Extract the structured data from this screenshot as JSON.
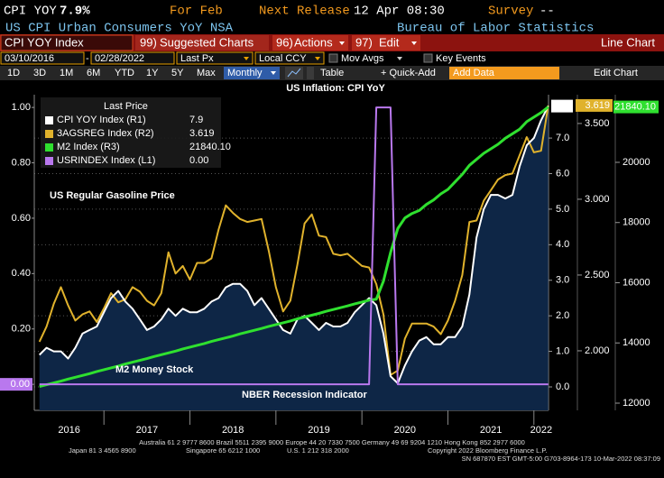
{
  "header": {
    "ticker": "CPI YOY",
    "value": "7.9%",
    "period": "For Feb",
    "next_release_label": "Next Release",
    "next_release": "12 Apr 08:30",
    "survey_label": "Survey",
    "survey": "--",
    "description": "US CPI Urban Consumers YoY NSA",
    "source": "Bureau of Labor Statistics"
  },
  "toolbar": {
    "security": "CPI YOY Index",
    "menus": [
      {
        "number": "99)",
        "label": "Suggested Charts"
      },
      {
        "number": "96)",
        "label": "Actions"
      },
      {
        "number": "97)",
        "label": "Edit"
      }
    ],
    "chart_type": "Line Chart",
    "start_date": "03/10/2016",
    "separator": "-",
    "end_date": "02/28/2022",
    "field": "Last Px",
    "currency": "Local CCY",
    "options": [
      "Mov Avgs",
      "Key Events"
    ],
    "periods": [
      "1D",
      "3D",
      "1M",
      "6M",
      "YTD",
      "1Y",
      "5Y",
      "Max"
    ],
    "frequency": "Monthly",
    "table": "Table",
    "quick_add": "+ Quick-Add",
    "add_data": "Add Data",
    "edit_chart": "Edit Chart"
  },
  "chart_data": {
    "type": "line",
    "title": "US Inflation: CPI YoY",
    "annotations": [
      "US Regular Gasoline Price",
      "M2 Money Stock",
      "NBER Recession Indicator"
    ],
    "legend": "upper left",
    "legend_title": "Last Price",
    "grid": true,
    "x": [
      2016.25,
      2016.333,
      2016.417,
      2016.5,
      2016.583,
      2016.667,
      2016.75,
      2016.833,
      2016.917,
      2017,
      2017.083,
      2017.167,
      2017.25,
      2017.333,
      2017.417,
      2017.5,
      2017.583,
      2017.667,
      2017.75,
      2017.833,
      2017.917,
      2018,
      2018.083,
      2018.167,
      2018.25,
      2018.333,
      2018.417,
      2018.5,
      2018.583,
      2018.667,
      2018.75,
      2018.833,
      2018.917,
      2019,
      2019.083,
      2019.167,
      2019.25,
      2019.333,
      2019.417,
      2019.5,
      2019.583,
      2019.667,
      2019.75,
      2019.833,
      2019.917,
      2020,
      2020.083,
      2020.167,
      2020.25,
      2020.333,
      2020.417,
      2020.5,
      2020.583,
      2020.667,
      2020.75,
      2020.833,
      2020.917,
      2021,
      2021.083,
      2021.167,
      2021.25,
      2021.333,
      2021.417,
      2021.5,
      2021.583,
      2021.667,
      2021.75,
      2021.833,
      2021.917,
      2022,
      2022.083,
      2022.167
    ],
    "xlim": [
      2016.19,
      2022.17
    ],
    "xticks": [
      2016,
      2017,
      2018,
      2019,
      2020,
      2021,
      2022
    ],
    "ylim": [
      -0.094,
      1.046
    ],
    "yticks": [
      {
        "value": 0,
        "label": "0.00"
      },
      {
        "value": 0.2,
        "label": "0.20"
      },
      {
        "value": 0.4,
        "label": "0.40"
      },
      {
        "value": 0.6,
        "label": "0.60"
      },
      {
        "value": 0.8,
        "label": "0.80"
      },
      {
        "value": 1,
        "label": "1.00"
      }
    ],
    "y2lim": [
      -0.66,
      8.22
    ],
    "y2ticks": [
      {
        "value": 0,
        "label": "0.0"
      },
      {
        "value": 1,
        "label": "1.0"
      },
      {
        "value": 2,
        "label": "2.0"
      },
      {
        "value": 3,
        "label": "3.0"
      },
      {
        "value": 4,
        "label": "4.0"
      },
      {
        "value": 5,
        "label": "5.0"
      },
      {
        "value": 6,
        "label": "6.0"
      },
      {
        "value": 7,
        "label": "7.0"
      }
    ],
    "y3lim": [
      1.607,
      3.69
    ],
    "y3ticks": [
      {
        "value": 2,
        "label": "2.000"
      },
      {
        "value": 2.5,
        "label": "2.500"
      },
      {
        "value": 3,
        "label": "3.000"
      },
      {
        "value": 3.5,
        "label": "3.500"
      }
    ],
    "y4lim": [
      11760,
      22247
    ],
    "y4ticks": [
      12000,
      14000,
      16000,
      18000,
      20000
    ],
    "series": [
      {
        "name": "CPI YOY Index (R1)",
        "color": "#ffffff",
        "axis": "y2",
        "area": "#0e2646",
        "last_label": "7.9",
        "values": [
          0.9,
          1.1,
          1.0,
          1.0,
          0.8,
          1.1,
          1.5,
          1.6,
          1.7,
          2.1,
          2.5,
          2.7,
          2.4,
          2.2,
          1.9,
          1.6,
          1.7,
          1.9,
          2.2,
          2.0,
          2.2,
          2.1,
          2.1,
          2.2,
          2.4,
          2.5,
          2.8,
          2.9,
          2.9,
          2.7,
          2.3,
          2.5,
          2.2,
          1.9,
          1.6,
          1.5,
          1.9,
          2.0,
          1.8,
          1.6,
          1.8,
          1.7,
          1.7,
          1.8,
          2.1,
          2.3,
          2.5,
          2.3,
          1.5,
          0.3,
          0.1,
          0.6,
          1.0,
          1.3,
          1.4,
          1.2,
          1.2,
          1.4,
          1.4,
          1.7,
          2.6,
          4.2,
          5.0,
          5.4,
          5.4,
          5.3,
          5.4,
          6.2,
          6.8,
          7.0,
          7.5,
          7.9
        ]
      },
      {
        "name": "3AGSREG Index (R2)",
        "color": "#e0b22c",
        "axis": "y3",
        "last_label": "3.619",
        "values": [
          2.06,
          2.16,
          2.31,
          2.42,
          2.3,
          2.2,
          2.24,
          2.26,
          2.19,
          2.28,
          2.38,
          2.32,
          2.34,
          2.42,
          2.39,
          2.33,
          2.3,
          2.38,
          2.65,
          2.51,
          2.56,
          2.47,
          2.58,
          2.58,
          2.61,
          2.8,
          2.96,
          2.91,
          2.87,
          2.85,
          2.86,
          2.87,
          2.66,
          2.42,
          2.26,
          2.33,
          2.57,
          2.84,
          2.9,
          2.76,
          2.75,
          2.64,
          2.63,
          2.64,
          2.6,
          2.56,
          2.55,
          2.44,
          2.24,
          1.84,
          1.87,
          2.08,
          2.18,
          2.18,
          2.18,
          2.16,
          2.11,
          2.2,
          2.33,
          2.5,
          2.85,
          2.86,
          2.99,
          3.06,
          3.13,
          3.16,
          3.17,
          3.29,
          3.41,
          3.31,
          3.32,
          3.619
        ]
      },
      {
        "name": "M2 Index (R3)",
        "color": "#2fe02f",
        "axis": "y4",
        "last_label": "21840.10",
        "values": [
          12550,
          12610,
          12670,
          12730,
          12800,
          12860,
          12920,
          12980,
          13050,
          13110,
          13170,
          13230,
          13300,
          13360,
          13420,
          13480,
          13550,
          13610,
          13670,
          13730,
          13800,
          13860,
          13920,
          13980,
          14050,
          14110,
          14170,
          14230,
          14300,
          14360,
          14420,
          14480,
          14550,
          14610,
          14670,
          14730,
          14800,
          14860,
          14920,
          14980,
          15050,
          15110,
          15170,
          15230,
          15300,
          15360,
          15420,
          15450,
          16050,
          17000,
          17800,
          18150,
          18300,
          18400,
          18600,
          18750,
          18950,
          19100,
          19350,
          19600,
          19900,
          20100,
          20300,
          20450,
          20600,
          20800,
          20950,
          21100,
          21350,
          21500,
          21650,
          21840.1
        ]
      },
      {
        "name": "USRINDEX Index (L1)",
        "color": "#b978ee",
        "axis": "y",
        "last_label": "0.00",
        "values": [
          0,
          0,
          0,
          0,
          0,
          0,
          0,
          0,
          0,
          0,
          0,
          0,
          0,
          0,
          0,
          0,
          0,
          0,
          0,
          0,
          0,
          0,
          0,
          0,
          0,
          0,
          0,
          0,
          0,
          0,
          0,
          0,
          0,
          0,
          0,
          0,
          0,
          0,
          0,
          0,
          0,
          0,
          0,
          0,
          0,
          0,
          0,
          1,
          1,
          1,
          0,
          0,
          0,
          0,
          0,
          0,
          0,
          0,
          0,
          0,
          0,
          0,
          0,
          0,
          0,
          0,
          0,
          0,
          0,
          0,
          0,
          0
        ]
      }
    ]
  },
  "footer": {
    "lines": [
      "Australia 61 2 9777 8600 Brazil 5511 2395 9000 Europe 44 20 7330 7500 Germany 49 69 9204 1210 Hong Kong 852 2977 6000",
      "Japan 81 3 4565 8900",
      "Singapore 65 6212 1000",
      "U.S. 1 212 318 2000",
      "Copyright 2022 Bloomberg Finance L.P.",
      "SN 687870 EST  GMT-5:00 G703-8964-173 10-Mar-2022 08:37:09"
    ]
  }
}
